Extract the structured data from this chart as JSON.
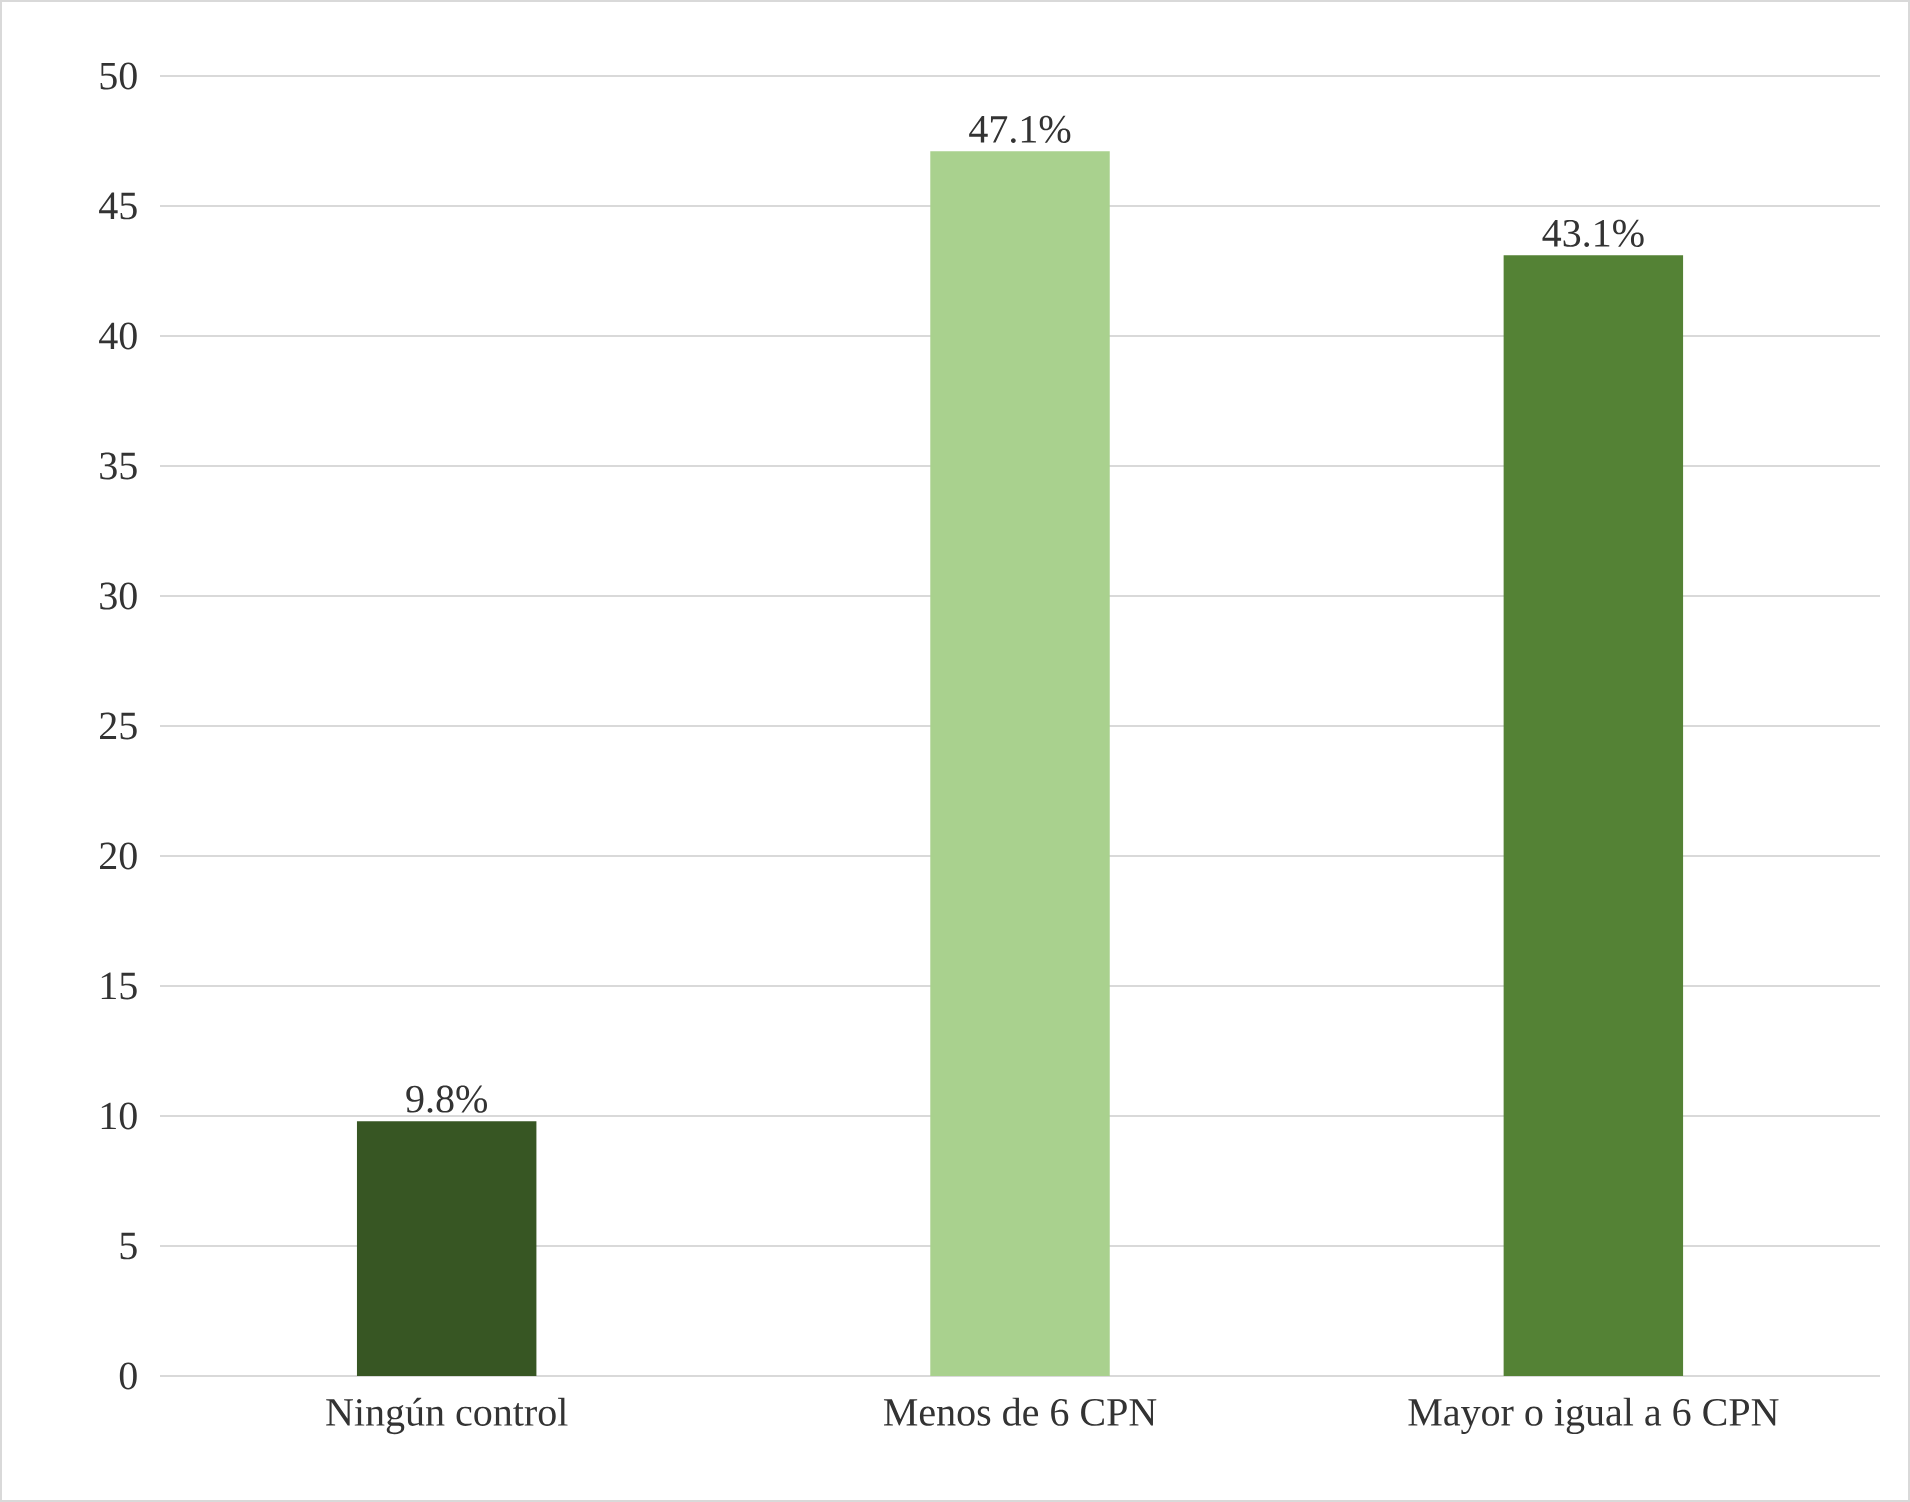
{
  "chart_data": {
    "type": "bar",
    "categories": [
      "Ningún control",
      "Menos de 6 CPN",
      "Mayor o igual a 6 CPN"
    ],
    "values": [
      9.8,
      47.1,
      43.1
    ],
    "colors": [
      "#375623",
      "#a9d18e",
      "#548235"
    ],
    "value_labels": [
      "9.8%",
      "47.1%",
      "43.1%"
    ],
    "ylim": [
      0,
      50
    ],
    "yticks": [
      0,
      5,
      10,
      15,
      20,
      25,
      30,
      35,
      40,
      45,
      50
    ],
    "grid": "y"
  }
}
